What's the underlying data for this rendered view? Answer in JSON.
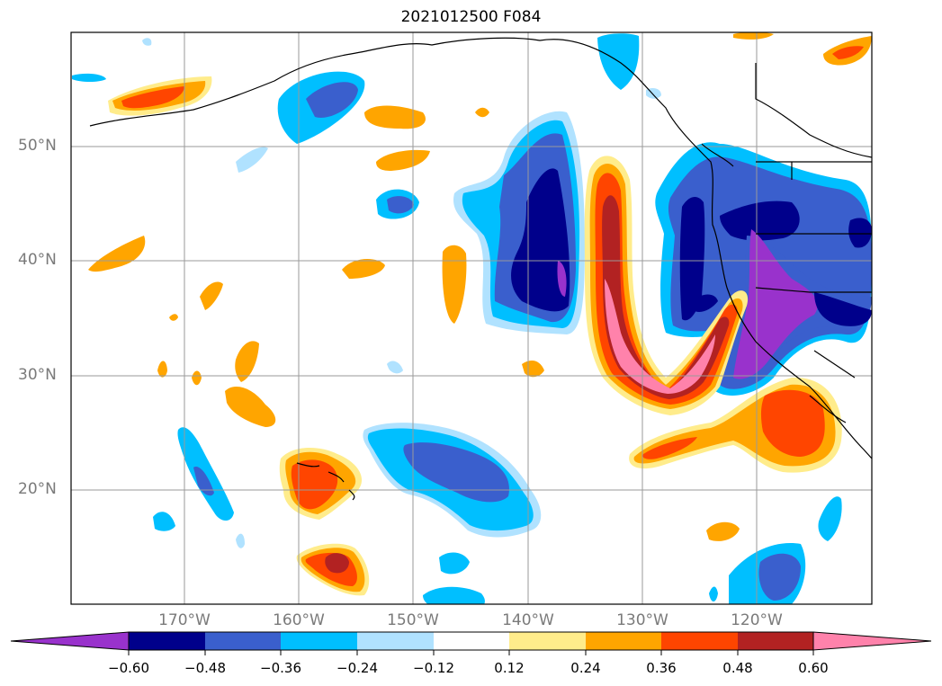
{
  "title": "2021012500 F084",
  "latitude_labels": [
    "50°N",
    "40°N",
    "30°N",
    "20°N"
  ],
  "longitude_labels": [
    "170°W",
    "160°W",
    "150°W",
    "140°W",
    "130°W",
    "120°W"
  ],
  "colorbar": {
    "colors": [
      "#9932cc",
      "#00008b",
      "#3a5fcd",
      "#00bfff",
      "#b0e2ff",
      "#ffffff",
      "#ffec8b",
      "#ffa500",
      "#ff4500",
      "#b22222",
      "#ff82ab"
    ],
    "tick_labels": [
      "−0.60",
      "−0.48",
      "−0.36",
      "−0.24",
      "−0.12",
      "0.12",
      "0.24",
      "0.36",
      "0.48",
      "0.60"
    ]
  }
}
